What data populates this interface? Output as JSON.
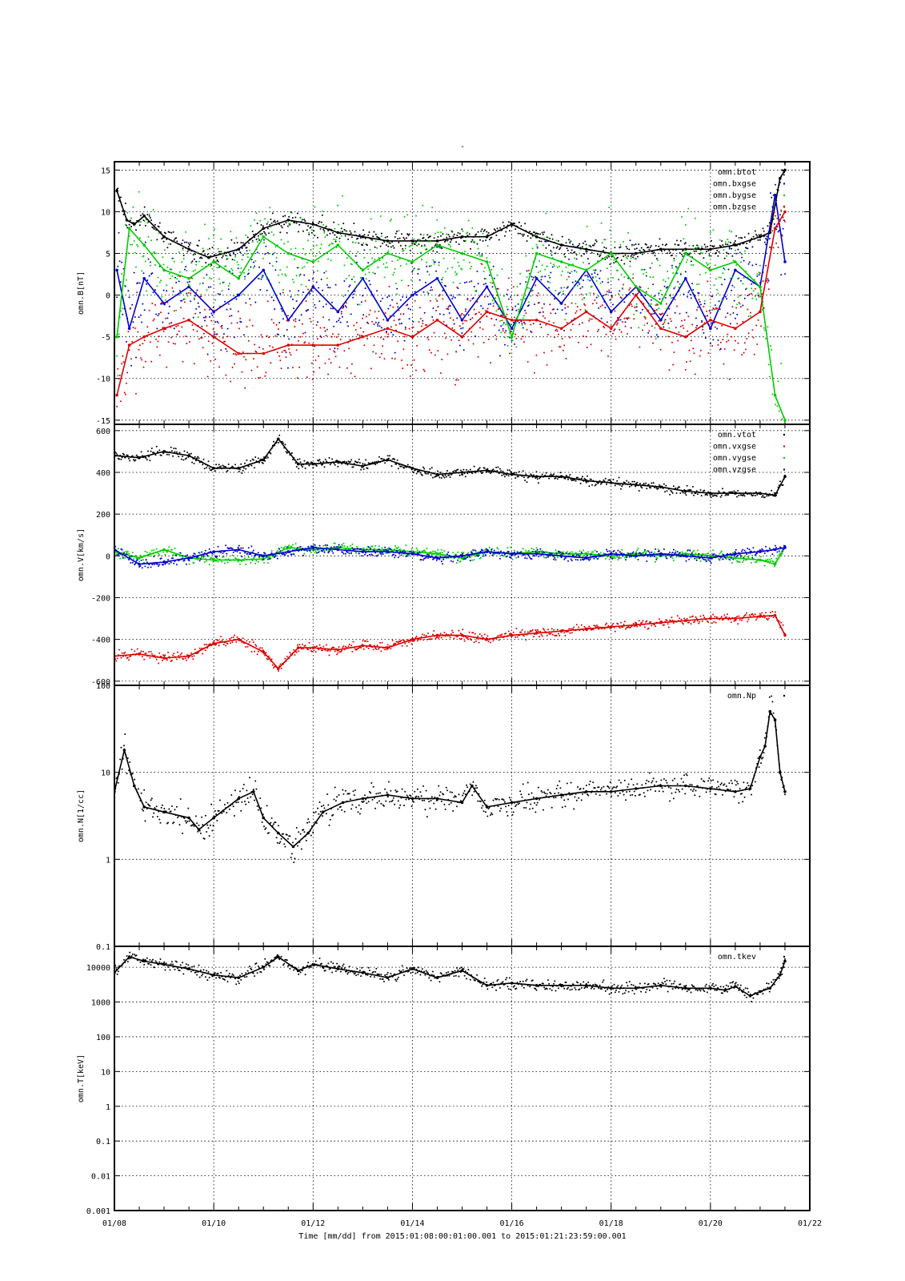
{
  "figure": {
    "title": "-",
    "xlabel": "Time [mm/dd]  from 2015:01:08:00:01:00.001  to  2015:01:21:23:59:00.001"
  },
  "chart_data": [
    {
      "type": "scatter",
      "ylabel": "omn.B[nT]",
      "ylim": [
        -15.5,
        16
      ],
      "yscale": "linear",
      "xlim": [
        0,
        14
      ],
      "x_tick_labels": [
        "01/08",
        "01/10",
        "01/12",
        "01/14",
        "01/16",
        "01/18",
        "01/20",
        "01/22"
      ],
      "y_ticks": [
        -15,
        -10,
        -5,
        0,
        5,
        10,
        15
      ],
      "y_tick_labels": [
        "-15",
        "-10",
        "-5",
        "0",
        "5",
        "10",
        "15"
      ],
      "grid": true,
      "legend_position": "top-right",
      "series": [
        {
          "name": "omn.btot",
          "color": "#000000",
          "x": [
            0.05,
            0.25,
            0.4,
            0.6,
            1.0,
            1.5,
            1.9,
            2.5,
            3.0,
            3.5,
            4.0,
            4.5,
            5.0,
            5.5,
            6.0,
            6.5,
            7.0,
            7.5,
            8.0,
            8.5,
            9.0,
            9.5,
            10.0,
            10.5,
            11.0,
            11.5,
            12.0,
            12.5,
            13.0,
            13.2,
            13.4,
            13.5
          ],
          "y": [
            12.5,
            9,
            8.5,
            9.5,
            7,
            5.5,
            4.5,
            5.5,
            8,
            9,
            8.5,
            7.5,
            7,
            6.5,
            6.5,
            6.5,
            7,
            7,
            8.5,
            7,
            6,
            5.5,
            5,
            5,
            5.5,
            5.5,
            5.5,
            6,
            7,
            7.5,
            14,
            15
          ]
        },
        {
          "name": "omn.bxgse",
          "color": "#0000cc",
          "x": [
            0.05,
            0.3,
            0.6,
            1.0,
            1.5,
            2.0,
            2.5,
            3.0,
            3.5,
            4.0,
            4.5,
            5.0,
            5.5,
            6.0,
            6.5,
            7.0,
            7.5,
            8.0,
            8.5,
            9.0,
            9.5,
            10.0,
            10.5,
            11.0,
            11.5,
            12.0,
            12.5,
            13.0,
            13.3,
            13.5
          ],
          "y": [
            3,
            -4,
            2,
            -1,
            1,
            -2,
            0,
            3,
            -3,
            1,
            -2,
            2,
            -3,
            0,
            2,
            -3,
            1,
            -4,
            2,
            -1,
            3,
            -2,
            1,
            -3,
            2,
            -4,
            3,
            1,
            12,
            4
          ]
        },
        {
          "name": "omn.bygse",
          "color": "#00cc00",
          "x": [
            0.05,
            0.3,
            0.6,
            1.0,
            1.5,
            2.0,
            2.5,
            3.0,
            3.5,
            4.0,
            4.5,
            5.0,
            5.5,
            6.0,
            6.5,
            7.0,
            7.5,
            8.0,
            8.5,
            9.0,
            9.5,
            10.0,
            10.5,
            11.0,
            11.5,
            12.0,
            12.5,
            13.0,
            13.3,
            13.5
          ],
          "y": [
            -5,
            8,
            6,
            3,
            2,
            4,
            2,
            7,
            5,
            4,
            6,
            3,
            5,
            4,
            6,
            5,
            4,
            -5,
            5,
            4,
            3,
            5,
            1,
            -1,
            5,
            3,
            4,
            1,
            -12,
            -15
          ]
        },
        {
          "name": "omn.bzgse",
          "color": "#dd0000",
          "x": [
            0.05,
            0.3,
            0.6,
            1.0,
            1.5,
            2.0,
            2.5,
            3.0,
            3.5,
            4.0,
            4.5,
            5.0,
            5.5,
            6.0,
            6.5,
            7.0,
            7.5,
            8.0,
            8.5,
            9.0,
            9.5,
            10.0,
            10.5,
            11.0,
            11.5,
            12.0,
            12.5,
            13.0,
            13.3,
            13.5
          ],
          "y": [
            -12,
            -6,
            -5,
            -4,
            -3,
            -5,
            -7,
            -7,
            -6,
            -6,
            -6,
            -5,
            -4,
            -5,
            -3,
            -5,
            -2,
            -3,
            -3,
            -4,
            -2,
            -4,
            0,
            -4,
            -5,
            -3,
            -4,
            -2,
            8,
            10
          ]
        }
      ]
    },
    {
      "type": "scatter",
      "ylabel": "omn.V[km/s]",
      "ylim": [
        -620,
        630
      ],
      "yscale": "linear",
      "xlim": [
        0,
        14
      ],
      "y_ticks": [
        -600,
        -400,
        -200,
        0,
        200,
        400,
        600
      ],
      "y_tick_labels": [
        "-600",
        "-400",
        "-200",
        "0",
        "200",
        "400",
        "600"
      ],
      "grid": true,
      "legend_position": "top-right",
      "series": [
        {
          "name": "omn.vtot",
          "color": "#000000",
          "x": [
            0.0,
            0.5,
            1.0,
            1.5,
            2.0,
            2.5,
            3.0,
            3.3,
            3.7,
            4.0,
            4.5,
            5.0,
            5.5,
            6.0,
            6.5,
            7.0,
            7.5,
            8.0,
            8.5,
            9.0,
            9.5,
            10.0,
            10.5,
            11.0,
            11.5,
            12.0,
            12.5,
            13.0,
            13.3,
            13.5
          ],
          "y": [
            480,
            470,
            500,
            480,
            420,
            420,
            460,
            560,
            440,
            440,
            450,
            430,
            460,
            420,
            390,
            400,
            410,
            390,
            380,
            380,
            360,
            350,
            340,
            330,
            310,
            300,
            300,
            300,
            290,
            380
          ]
        },
        {
          "name": "omn.vxgse",
          "color": "#dd0000",
          "x": [
            0.0,
            0.5,
            1.0,
            1.5,
            2.0,
            2.5,
            3.0,
            3.3,
            3.7,
            4.0,
            4.5,
            5.0,
            5.5,
            6.0,
            6.5,
            7.0,
            7.5,
            8.0,
            8.5,
            9.0,
            9.5,
            10.0,
            10.5,
            11.0,
            11.5,
            12.0,
            12.5,
            13.0,
            13.3,
            13.5
          ],
          "y": [
            -480,
            -470,
            -490,
            -480,
            -420,
            -400,
            -460,
            -540,
            -440,
            -440,
            -450,
            -430,
            -440,
            -400,
            -380,
            -380,
            -400,
            -380,
            -370,
            -360,
            -350,
            -340,
            -330,
            -320,
            -310,
            -300,
            -300,
            -290,
            -285,
            -380
          ]
        },
        {
          "name": "omn.vygse",
          "color": "#00cc00",
          "x": [
            0.0,
            0.5,
            1.0,
            1.5,
            2.0,
            2.5,
            3.0,
            3.5,
            4.0,
            4.5,
            5.0,
            5.5,
            6.0,
            6.5,
            7.0,
            7.5,
            8.0,
            8.5,
            9.0,
            9.5,
            10.0,
            10.5,
            11.0,
            11.5,
            12.0,
            12.5,
            13.0,
            13.3,
            13.5
          ],
          "y": [
            20,
            -10,
            30,
            -10,
            -20,
            -20,
            -15,
            40,
            30,
            40,
            30,
            30,
            20,
            10,
            -10,
            20,
            10,
            20,
            10,
            10,
            0,
            10,
            0,
            10,
            0,
            -10,
            -20,
            -40,
            40
          ]
        },
        {
          "name": "omn.vzgse",
          "color": "#0000cc",
          "x": [
            0.0,
            0.5,
            1.0,
            1.5,
            2.0,
            2.5,
            3.0,
            3.5,
            4.0,
            4.5,
            5.0,
            5.5,
            6.0,
            6.5,
            7.0,
            7.5,
            8.0,
            8.5,
            9.0,
            9.5,
            10.0,
            10.5,
            11.0,
            11.5,
            12.0,
            12.5,
            13.0,
            13.3,
            13.5
          ],
          "y": [
            30,
            -40,
            -30,
            -10,
            20,
            30,
            0,
            20,
            40,
            30,
            20,
            20,
            10,
            -10,
            0,
            20,
            10,
            10,
            0,
            -10,
            10,
            0,
            10,
            0,
            -10,
            10,
            20,
            30,
            40
          ]
        }
      ]
    },
    {
      "type": "scatter",
      "ylabel": "omn.N[1/cc]",
      "ylim": [
        0.1,
        100
      ],
      "yscale": "log",
      "xlim": [
        0,
        14
      ],
      "y_ticks": [
        0.1,
        1,
        10,
        100
      ],
      "y_tick_labels": [
        "0.1",
        "1",
        "10",
        "100"
      ],
      "grid": true,
      "legend_position": "top-right",
      "series": [
        {
          "name": "omn.Np",
          "color": "#000000",
          "x": [
            0.0,
            0.2,
            0.4,
            0.6,
            1.0,
            1.5,
            1.7,
            2.0,
            2.5,
            2.8,
            3.0,
            3.3,
            3.6,
            3.9,
            4.2,
            4.6,
            5.0,
            5.5,
            6.0,
            6.5,
            7.0,
            7.2,
            7.5,
            8.0,
            8.5,
            9.0,
            9.5,
            10.0,
            10.5,
            11.0,
            11.5,
            12.0,
            12.5,
            12.8,
            13.0,
            13.1,
            13.2,
            13.3,
            13.4,
            13.5
          ],
          "y": [
            6,
            18,
            7,
            4,
            3.5,
            3,
            2.2,
            3,
            5,
            6,
            3,
            2,
            1.4,
            2,
            3.5,
            4.5,
            5,
            5.5,
            5,
            5,
            4.5,
            7,
            4,
            4.5,
            5,
            5.5,
            6,
            6,
            6.5,
            7,
            7,
            6.5,
            6,
            6.5,
            15,
            20,
            50,
            40,
            10,
            6
          ]
        }
      ]
    },
    {
      "type": "scatter",
      "ylabel": "omn.T[keV]",
      "ylim": [
        0.001,
        40000
      ],
      "yscale": "log",
      "xlim": [
        0,
        14
      ],
      "y_ticks": [
        0.001,
        0.01,
        0.1,
        1,
        10,
        100,
        1000,
        10000
      ],
      "y_tick_labels": [
        "0.001",
        "0.01",
        "0.1",
        "1",
        "10",
        "100",
        "1000",
        "10000"
      ],
      "grid": true,
      "legend_position": "top-right",
      "series": [
        {
          "name": "omn.tkev",
          "color": "#000000",
          "x": [
            0.0,
            0.3,
            0.6,
            1.0,
            1.5,
            2.0,
            2.5,
            3.0,
            3.3,
            3.7,
            4.0,
            4.5,
            5.0,
            5.5,
            6.0,
            6.5,
            7.0,
            7.5,
            8.0,
            8.5,
            9.0,
            9.5,
            10.0,
            10.5,
            11.0,
            11.5,
            12.0,
            12.3,
            12.5,
            12.8,
            13.0,
            13.2,
            13.4,
            13.5
          ],
          "y": [
            7000,
            20000,
            15000,
            12000,
            9000,
            6000,
            5000,
            10000,
            20000,
            8000,
            12000,
            9000,
            7000,
            5000,
            9000,
            5000,
            8000,
            3000,
            3500,
            3000,
            3000,
            3000,
            2500,
            2500,
            3000,
            2500,
            2500,
            2200,
            2800,
            1500,
            2000,
            2500,
            6000,
            15000
          ]
        }
      ]
    }
  ]
}
